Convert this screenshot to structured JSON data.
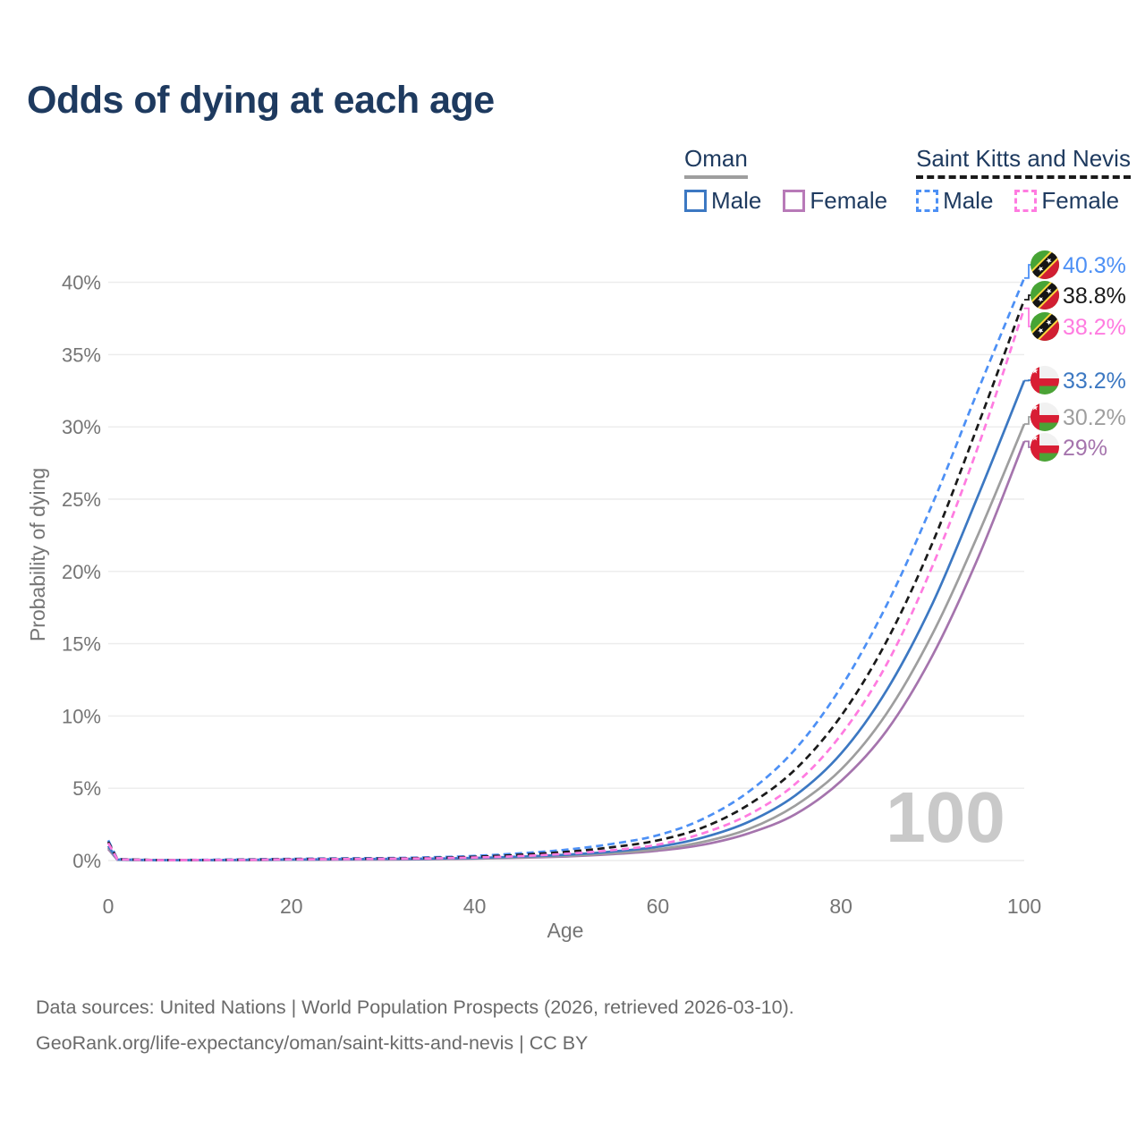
{
  "title": "Odds of dying at each age",
  "legend": {
    "groups": [
      {
        "name": "Oman",
        "line_style": "solid",
        "line_color": "#9e9e9e",
        "items": [
          {
            "label": "Male",
            "color": "#3c78c2",
            "dashed": false
          },
          {
            "label": "Female",
            "color": "#b87ab8",
            "dashed": false
          }
        ]
      },
      {
        "name": "Saint Kitts and Nevis",
        "line_style": "dashed",
        "line_color": "#1a1a1a",
        "items": [
          {
            "label": "Male",
            "color": "#4d90f5",
            "dashed": true
          },
          {
            "label": "Female",
            "color": "#ff7be0",
            "dashed": true
          }
        ]
      }
    ]
  },
  "watermark": "100",
  "footer": {
    "line1": "Data sources: United Nations | World Population Prospects (2026, retrieved 2026-03-10).",
    "line2": "GeoRank.org/life-expectancy/oman/saint-kitts-and-nevis | CC BY"
  },
  "chart_data": {
    "type": "line",
    "title": "Odds of dying at each age",
    "xlabel": "Age",
    "ylabel": "Probability of dying",
    "xlim": [
      0,
      100
    ],
    "ylim": [
      0,
      41
    ],
    "x_ticks": [
      0,
      20,
      40,
      60,
      80,
      100
    ],
    "y_ticks": [
      0,
      5,
      10,
      15,
      20,
      25,
      30,
      35,
      40
    ],
    "y_tick_suffix": "%",
    "grid": true,
    "legend_position": "top-right",
    "series": [
      {
        "name": "Oman Female",
        "country": "Oman",
        "sex": "Female",
        "color": "#a574ad",
        "dashed": false,
        "flag": "oman",
        "end_label": "29%",
        "end_value": 29,
        "points": [
          [
            0,
            0.8
          ],
          [
            1,
            0.05
          ],
          [
            5,
            0.02
          ],
          [
            10,
            0.022
          ],
          [
            15,
            0.03
          ],
          [
            20,
            0.05
          ],
          [
            25,
            0.06
          ],
          [
            30,
            0.07
          ],
          [
            35,
            0.09
          ],
          [
            40,
            0.13
          ],
          [
            45,
            0.19
          ],
          [
            50,
            0.28
          ],
          [
            55,
            0.44
          ],
          [
            60,
            0.68
          ],
          [
            65,
            1.1
          ],
          [
            70,
            1.9
          ],
          [
            75,
            3.2
          ],
          [
            80,
            5.5
          ],
          [
            85,
            9.0
          ],
          [
            90,
            14.2
          ],
          [
            95,
            21.0
          ],
          [
            100,
            29
          ]
        ]
      },
      {
        "name": "Oman All",
        "country": "Oman",
        "sex": "All",
        "color": "#9e9e9e",
        "dashed": false,
        "flag": "oman",
        "end_label": "30.2%",
        "end_value": 30.2,
        "points": [
          [
            0,
            0.9
          ],
          [
            1,
            0.06
          ],
          [
            5,
            0.025
          ],
          [
            10,
            0.027
          ],
          [
            15,
            0.04
          ],
          [
            20,
            0.06
          ],
          [
            25,
            0.08
          ],
          [
            30,
            0.09
          ],
          [
            35,
            0.11
          ],
          [
            40,
            0.15
          ],
          [
            45,
            0.22
          ],
          [
            50,
            0.33
          ],
          [
            55,
            0.5
          ],
          [
            60,
            0.78
          ],
          [
            65,
            1.3
          ],
          [
            70,
            2.2
          ],
          [
            75,
            3.8
          ],
          [
            80,
            6.3
          ],
          [
            85,
            10.2
          ],
          [
            90,
            15.7
          ],
          [
            95,
            22.6
          ],
          [
            100,
            30.2
          ]
        ]
      },
      {
        "name": "Oman Male",
        "country": "Oman",
        "sex": "Male",
        "color": "#3c78c2",
        "dashed": false,
        "flag": "oman",
        "end_label": "33.2%",
        "end_value": 33.2,
        "points": [
          [
            0,
            1.0
          ],
          [
            1,
            0.07
          ],
          [
            5,
            0.03
          ],
          [
            10,
            0.03
          ],
          [
            15,
            0.05
          ],
          [
            20,
            0.07
          ],
          [
            25,
            0.09
          ],
          [
            30,
            0.11
          ],
          [
            35,
            0.13
          ],
          [
            40,
            0.18
          ],
          [
            45,
            0.27
          ],
          [
            50,
            0.4
          ],
          [
            55,
            0.62
          ],
          [
            60,
            0.95
          ],
          [
            65,
            1.6
          ],
          [
            70,
            2.7
          ],
          [
            75,
            4.5
          ],
          [
            80,
            7.4
          ],
          [
            85,
            11.8
          ],
          [
            90,
            17.8
          ],
          [
            95,
            25.3
          ],
          [
            100,
            33.2
          ]
        ]
      },
      {
        "name": "Saint Kitts and Nevis Male",
        "country": "Saint Kitts and Nevis",
        "sex": "Male",
        "color": "#4d90f5",
        "dashed": true,
        "flag": "skn",
        "end_label": "40.3%",
        "end_value": 40.3,
        "points": [
          [
            0,
            1.4
          ],
          [
            1,
            0.1
          ],
          [
            5,
            0.04
          ],
          [
            10,
            0.05
          ],
          [
            15,
            0.08
          ],
          [
            20,
            0.12
          ],
          [
            25,
            0.15
          ],
          [
            30,
            0.17
          ],
          [
            35,
            0.22
          ],
          [
            40,
            0.32
          ],
          [
            45,
            0.5
          ],
          [
            50,
            0.75
          ],
          [
            55,
            1.15
          ],
          [
            60,
            1.75
          ],
          [
            65,
            2.9
          ],
          [
            70,
            4.8
          ],
          [
            75,
            7.7
          ],
          [
            80,
            12.0
          ],
          [
            85,
            17.7
          ],
          [
            90,
            24.7
          ],
          [
            95,
            32.6
          ],
          [
            100,
            40.3
          ]
        ]
      },
      {
        "name": "Saint Kitts and Nevis All",
        "country": "Saint Kitts and Nevis",
        "sex": "All",
        "color": "#1a1a1a",
        "dashed": true,
        "flag": "skn",
        "end_label": "38.8%",
        "end_value": 38.8,
        "points": [
          [
            0,
            1.3
          ],
          [
            1,
            0.09
          ],
          [
            5,
            0.035
          ],
          [
            10,
            0.04
          ],
          [
            15,
            0.06
          ],
          [
            20,
            0.1
          ],
          [
            25,
            0.12
          ],
          [
            30,
            0.14
          ],
          [
            35,
            0.18
          ],
          [
            40,
            0.26
          ],
          [
            45,
            0.4
          ],
          [
            50,
            0.6
          ],
          [
            55,
            0.92
          ],
          [
            60,
            1.4
          ],
          [
            65,
            2.3
          ],
          [
            70,
            3.9
          ],
          [
            75,
            6.3
          ],
          [
            80,
            10.0
          ],
          [
            85,
            15.2
          ],
          [
            90,
            22.0
          ],
          [
            95,
            30.2
          ],
          [
            100,
            38.8
          ]
        ]
      },
      {
        "name": "Saint Kitts and Nevis Female",
        "country": "Saint Kitts and Nevis",
        "sex": "Female",
        "color": "#ff7be0",
        "dashed": true,
        "flag": "skn",
        "end_label": "38.2%",
        "end_value": 38.2,
        "points": [
          [
            0,
            1.2
          ],
          [
            1,
            0.08
          ],
          [
            5,
            0.03
          ],
          [
            10,
            0.035
          ],
          [
            15,
            0.05
          ],
          [
            20,
            0.08
          ],
          [
            25,
            0.1
          ],
          [
            30,
            0.12
          ],
          [
            35,
            0.15
          ],
          [
            40,
            0.21
          ],
          [
            45,
            0.31
          ],
          [
            50,
            0.47
          ],
          [
            55,
            0.72
          ],
          [
            60,
            1.1
          ],
          [
            65,
            1.9
          ],
          [
            70,
            3.2
          ],
          [
            75,
            5.3
          ],
          [
            80,
            8.7
          ],
          [
            85,
            13.6
          ],
          [
            90,
            20.4
          ],
          [
            95,
            28.7
          ],
          [
            100,
            38.2
          ]
        ]
      }
    ]
  }
}
